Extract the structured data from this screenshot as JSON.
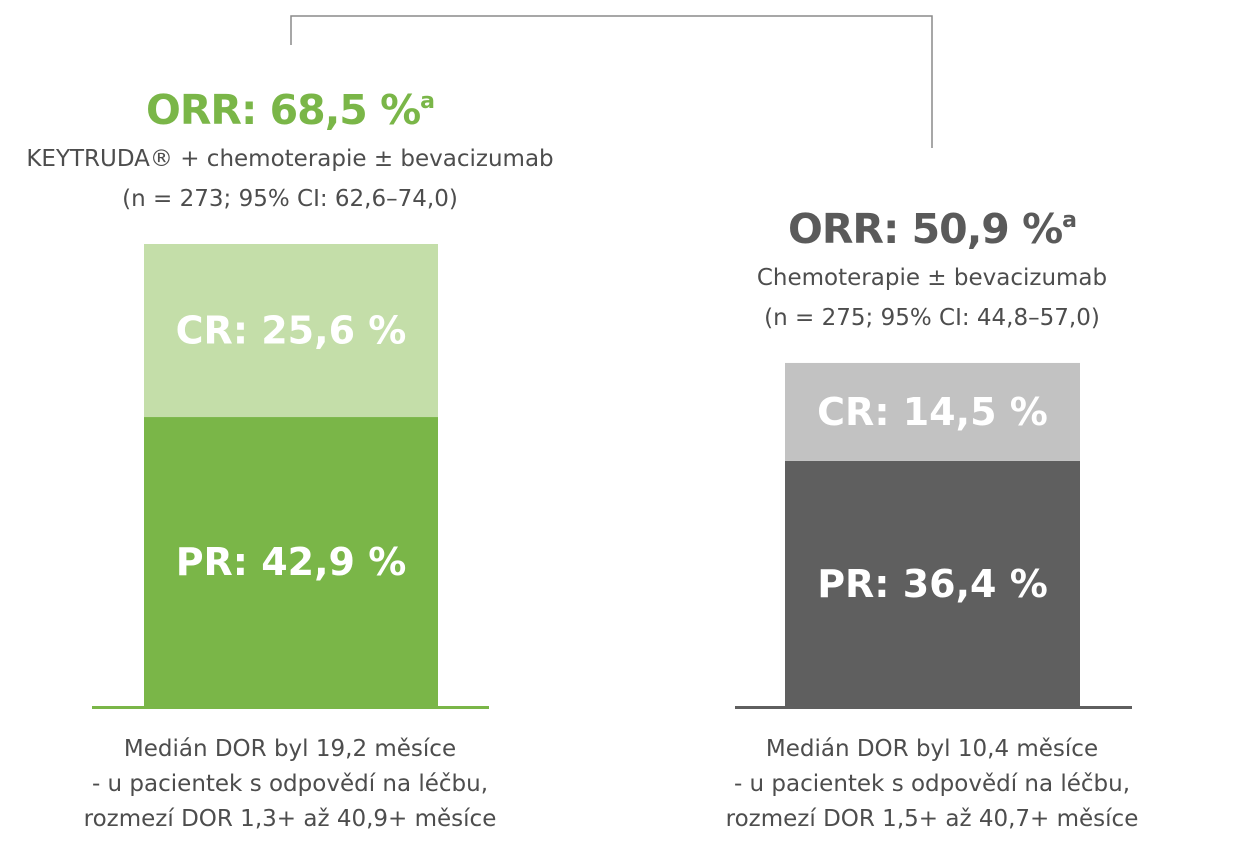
{
  "chart_data": {
    "type": "bar",
    "stacked": true,
    "ylim": [
      0,
      100
    ],
    "bars": [
      {
        "orr_label": "ORR: 68,5 %",
        "orr_superscript": "a",
        "orr_value": 68.5,
        "treatment": "KEYTRUDA® + chemoterapie ± bevacizumab",
        "stats": "(n = 273; 95% CI: 62,6–74,0)",
        "segments": [
          {
            "name": "PR",
            "label": "PR: 42,9 %",
            "value": 42.9,
            "color": "#7ab648"
          },
          {
            "name": "CR",
            "label": "CR: 25,6 %",
            "value": 25.6,
            "color": "#c4dea9"
          }
        ],
        "title_color": "#7ab648",
        "baseline_color": "#7ab648",
        "footnote": [
          "Medián DOR byl 19,2 měsíce",
          "- u pacientek s odpovědí na léčbu,",
          "rozmezí DOR 1,3+ až 40,9+ měsíce"
        ]
      },
      {
        "orr_label": "ORR: 50,9 %",
        "orr_superscript": "a",
        "orr_value": 50.9,
        "treatment": "Chemoterapie ± bevacizumab",
        "stats": "(n = 275; 95% CI: 44,8–57,0)",
        "segments": [
          {
            "name": "PR",
            "label": "PR: 36,4 %",
            "value": 36.4,
            "color": "#5f5f5f"
          },
          {
            "name": "CR",
            "label": "CR: 14,5 %",
            "value": 14.5,
            "color": "#c2c2c2"
          }
        ],
        "title_color": "#5a5a5a",
        "baseline_color": "#5f5f5f",
        "footnote": [
          "Medián DOR byl 10,4 měsíce",
          "- u pacientek s odpovědí na léčbu,",
          "rozmezí DOR 1,5+ až 40,7+ měsíce"
        ]
      }
    ]
  }
}
